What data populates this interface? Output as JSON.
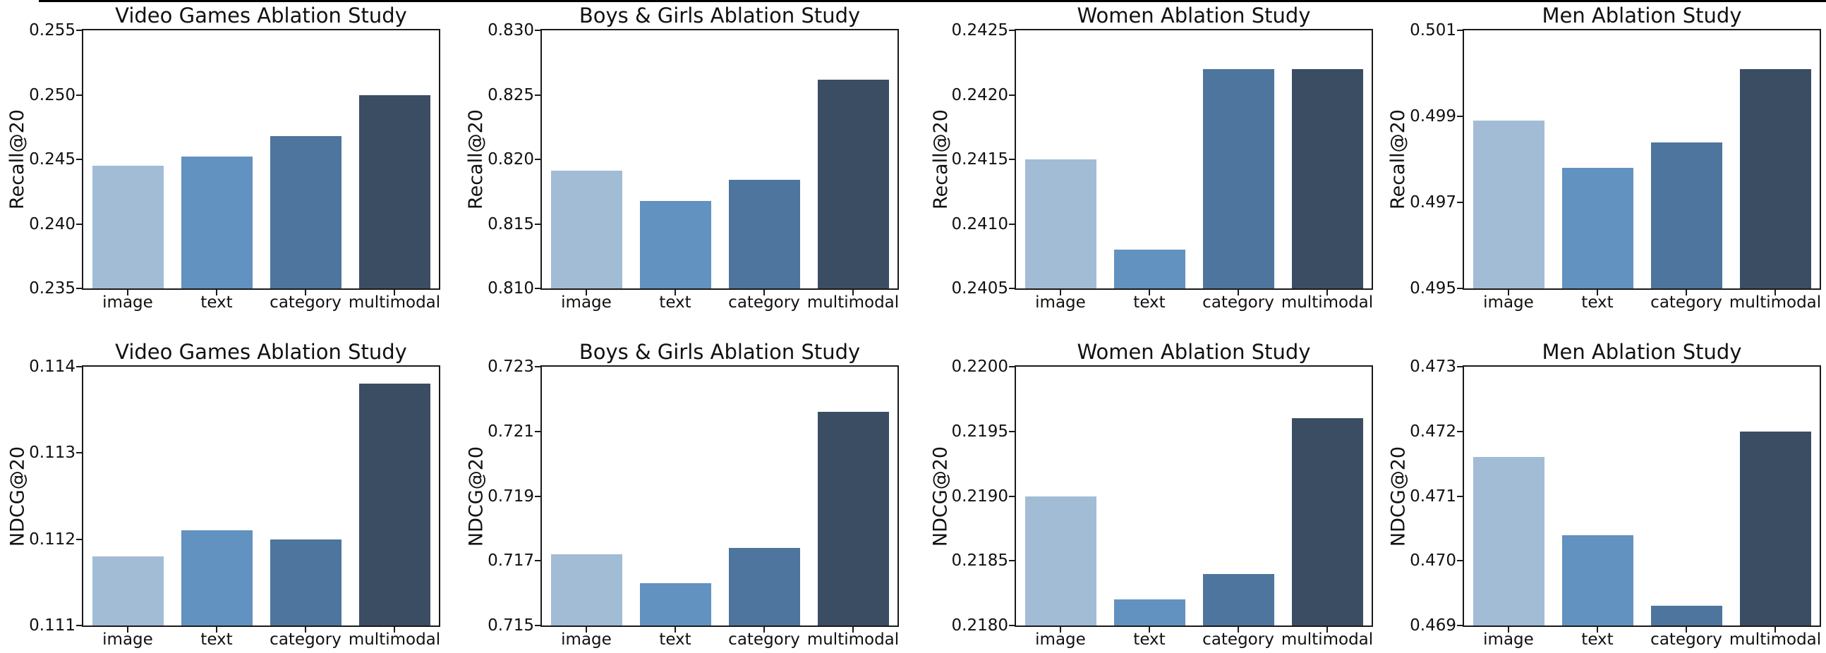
{
  "figure": {
    "kind": "matplotlib-bar-chart-grid",
    "rows": 2,
    "cols": 4,
    "background": "#ffffff",
    "spine_color": "#1a1a1a",
    "text_color": "#111111"
  },
  "bar_colors": [
    "#a2bcd6",
    "#6292bf",
    "#4d759d",
    "#3b4d63"
  ],
  "chart_data": [
    {
      "id": "video-games-recall20",
      "type": "bar",
      "title": "Video Games Ablation Study",
      "ylabel": "Recall@20",
      "xlabel": "",
      "categories": [
        "image",
        "text",
        "category",
        "multimodal"
      ],
      "values": [
        0.2445,
        0.2452,
        0.2468,
        0.25
      ],
      "ylim": [
        0.235,
        0.255
      ],
      "yticks": [
        "0.235",
        "0.240",
        "0.245",
        "0.250",
        "0.255"
      ],
      "grid": false,
      "legend": null
    },
    {
      "id": "boys-girls-recall20",
      "type": "bar",
      "title": "Boys & Girls Ablation Study",
      "ylabel": "Recall@20",
      "xlabel": "",
      "categories": [
        "image",
        "text",
        "category",
        "multimodal"
      ],
      "values": [
        0.8191,
        0.8168,
        0.8184,
        0.8262
      ],
      "ylim": [
        0.81,
        0.83
      ],
      "yticks": [
        "0.810",
        "0.815",
        "0.820",
        "0.825",
        "0.830"
      ],
      "grid": false,
      "legend": null
    },
    {
      "id": "women-recall20",
      "type": "bar",
      "title": "Women Ablation Study",
      "ylabel": "Recall@20",
      "xlabel": "",
      "categories": [
        "image",
        "text",
        "category",
        "multimodal"
      ],
      "values": [
        0.2415,
        0.2408,
        0.2422,
        0.2422
      ],
      "ylim": [
        0.2405,
        0.2425
      ],
      "yticks": [
        "0.2405",
        "0.2410",
        "0.2415",
        "0.2420",
        "0.2425"
      ],
      "grid": false,
      "legend": null
    },
    {
      "id": "men-recall20",
      "type": "bar",
      "title": "Men Ablation Study",
      "ylabel": "Recall@20",
      "xlabel": "",
      "categories": [
        "image",
        "text",
        "category",
        "multimodal"
      ],
      "values": [
        0.4989,
        0.4978,
        0.4984,
        0.5001
      ],
      "ylim": [
        0.495,
        0.501
      ],
      "yticks": [
        "0.495",
        "0.497",
        "0.499",
        "0.501"
      ],
      "grid": false,
      "legend": null
    },
    {
      "id": "video-games-ndcg20",
      "type": "bar",
      "title": "Video Games Ablation Study",
      "ylabel": "NDCG@20",
      "xlabel": "",
      "categories": [
        "image",
        "text",
        "category",
        "multimodal"
      ],
      "values": [
        0.1118,
        0.1121,
        0.112,
        0.1138
      ],
      "ylim": [
        0.111,
        0.114
      ],
      "yticks": [
        "0.111",
        "0.112",
        "0.113",
        "0.114"
      ],
      "grid": false,
      "legend": null
    },
    {
      "id": "boys-girls-ndcg20",
      "type": "bar",
      "title": "Boys & Girls Ablation Study",
      "ylabel": "NDCG@20",
      "xlabel": "",
      "categories": [
        "image",
        "text",
        "category",
        "multimodal"
      ],
      "values": [
        0.7172,
        0.7163,
        0.7174,
        0.7216
      ],
      "ylim": [
        0.715,
        0.723
      ],
      "yticks": [
        "0.715",
        "0.717",
        "0.719",
        "0.721",
        "0.723"
      ],
      "grid": false,
      "legend": null
    },
    {
      "id": "women-ndcg20",
      "type": "bar",
      "title": "Women Ablation Study",
      "ylabel": "NDCG@20",
      "xlabel": "",
      "categories": [
        "image",
        "text",
        "category",
        "multimodal"
      ],
      "values": [
        0.219,
        0.2182,
        0.2184,
        0.2196
      ],
      "ylim": [
        0.218,
        0.22
      ],
      "yticks": [
        "0.2180",
        "0.2185",
        "0.2190",
        "0.2195",
        "0.2200"
      ],
      "grid": false,
      "legend": null
    },
    {
      "id": "men-ndcg20",
      "type": "bar",
      "title": "Men Ablation Study",
      "ylabel": "NDCG@20",
      "xlabel": "",
      "categories": [
        "image",
        "text",
        "category",
        "multimodal"
      ],
      "values": [
        0.4716,
        0.4704,
        0.4693,
        0.472
      ],
      "ylim": [
        0.469,
        0.473
      ],
      "yticks": [
        "0.469",
        "0.470",
        "0.471",
        "0.472",
        "0.473"
      ],
      "grid": false,
      "legend": null
    }
  ]
}
